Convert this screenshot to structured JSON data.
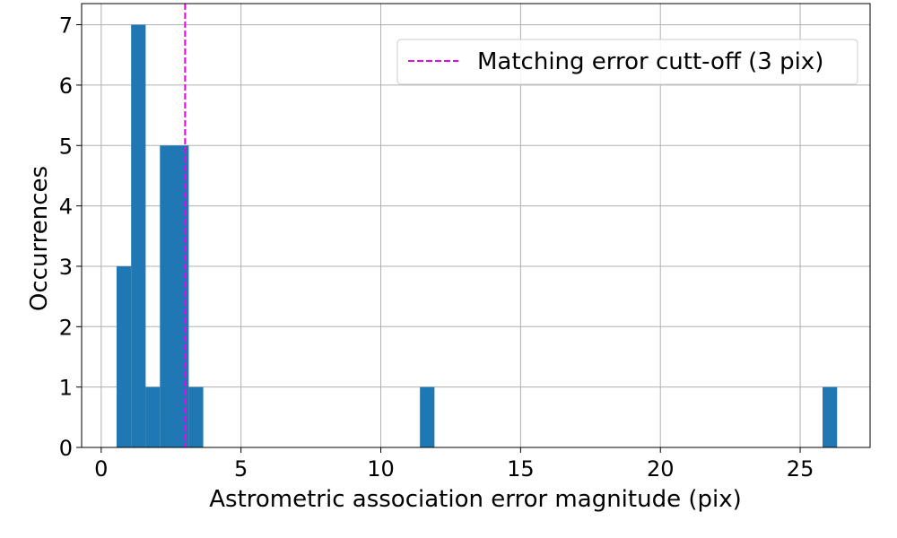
{
  "chart_data": {
    "type": "bar",
    "subtype": "histogram",
    "title": "",
    "xlabel": "Astrometric association error magnitude (pix)",
    "ylabel": "Occurrences",
    "xlim": [
      -0.7,
      27.5
    ],
    "ylim": [
      0,
      7.35
    ],
    "xticks": [
      0,
      5,
      10,
      15,
      20,
      25
    ],
    "yticks": [
      0,
      1,
      2,
      3,
      4,
      5,
      6,
      7
    ],
    "grid": true,
    "bar_color": "#1f77b4",
    "bins": [
      {
        "x0": 0.55,
        "x1": 1.07,
        "count": 3
      },
      {
        "x0": 1.07,
        "x1": 1.59,
        "count": 7
      },
      {
        "x0": 1.59,
        "x1": 2.1,
        "count": 1
      },
      {
        "x0": 2.1,
        "x1": 3.13,
        "count": 5
      },
      {
        "x0": 3.13,
        "x1": 3.65,
        "count": 1
      },
      {
        "x0": 11.4,
        "x1": 11.92,
        "count": 1
      },
      {
        "x0": 25.8,
        "x1": 26.32,
        "count": 1
      }
    ],
    "reference_line": {
      "x": 3,
      "label": "Matching error cutt-off (3 pix)",
      "color": "#ee00ee",
      "style": "dashed"
    },
    "legend_position": "top-right"
  }
}
